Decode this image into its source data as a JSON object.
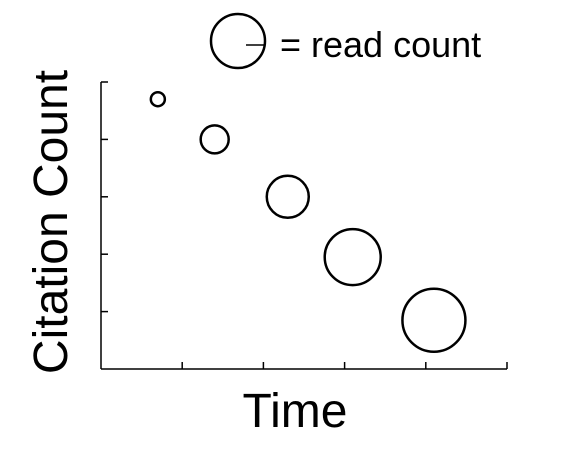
{
  "chart_data": {
    "type": "scatter",
    "encoding": "bubble",
    "xlabel": "Time",
    "ylabel": "Citation Count",
    "legend": {
      "label": "= read count",
      "placement": "top-right"
    },
    "xlim": [
      0,
      5
    ],
    "ylim": [
      0,
      5
    ],
    "x_ticks": [
      1,
      2,
      3,
      4,
      5
    ],
    "y_ticks": [
      1,
      2,
      3,
      4
    ],
    "tick_labels_shown": false,
    "grid": false,
    "points": [
      {
        "x": 0.7,
        "y": 4.7,
        "size": 1.0
      },
      {
        "x": 1.4,
        "y": 4.0,
        "size": 2.0
      },
      {
        "x": 2.3,
        "y": 3.0,
        "size": 3.0
      },
      {
        "x": 3.1,
        "y": 1.95,
        "size": 4.0
      },
      {
        "x": 4.1,
        "y": 0.85,
        "size": 4.5
      }
    ]
  }
}
